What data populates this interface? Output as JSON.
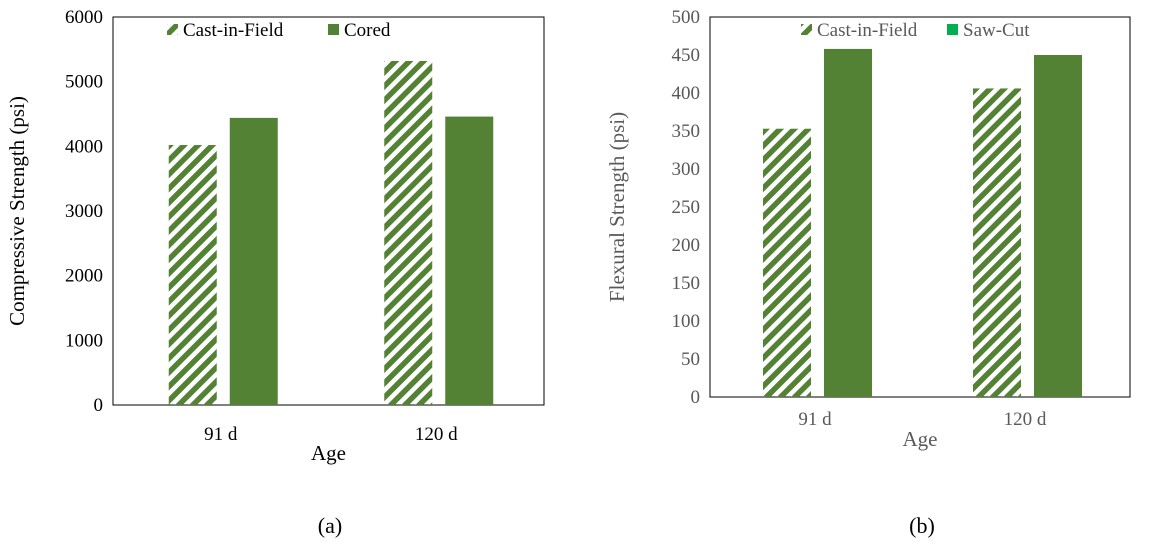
{
  "colors": {
    "series_solid": "#548235",
    "legend_saw_cut": "#00b050",
    "tick_text_a": "#000000",
    "tick_text_b": "#595959"
  },
  "chart_data": [
    {
      "type": "bar",
      "panel_label": "(a)",
      "categories": [
        "91 d",
        "120 d"
      ],
      "series": [
        {
          "name": "Cast-in-Field",
          "values": [
            4020,
            5320
          ],
          "pattern": "diagonal-hatch"
        },
        {
          "name": "Cored",
          "values": [
            4440,
            4460
          ],
          "pattern": "solid"
        }
      ],
      "xlabel": "Age",
      "ylabel": "Compressive Strength (psi)",
      "ylim": [
        0,
        6000
      ],
      "yticks": [
        0,
        1000,
        2000,
        3000,
        4000,
        5000,
        6000
      ],
      "grid": false,
      "legend_position": "top"
    },
    {
      "type": "bar",
      "panel_label": "(b)",
      "categories": [
        "91 d",
        "120 d"
      ],
      "series": [
        {
          "name": "Cast-in-Field",
          "values": [
            353,
            406
          ],
          "pattern": "diagonal-hatch"
        },
        {
          "name": "Saw-Cut",
          "values": [
            458,
            450
          ],
          "pattern": "solid"
        }
      ],
      "xlabel": "Age",
      "ylabel": "Flexural Strength (psi)",
      "ylim": [
        0,
        500
      ],
      "yticks": [
        0,
        50,
        100,
        150,
        200,
        250,
        300,
        350,
        400,
        450,
        500
      ],
      "grid": false,
      "legend_position": "top"
    }
  ]
}
